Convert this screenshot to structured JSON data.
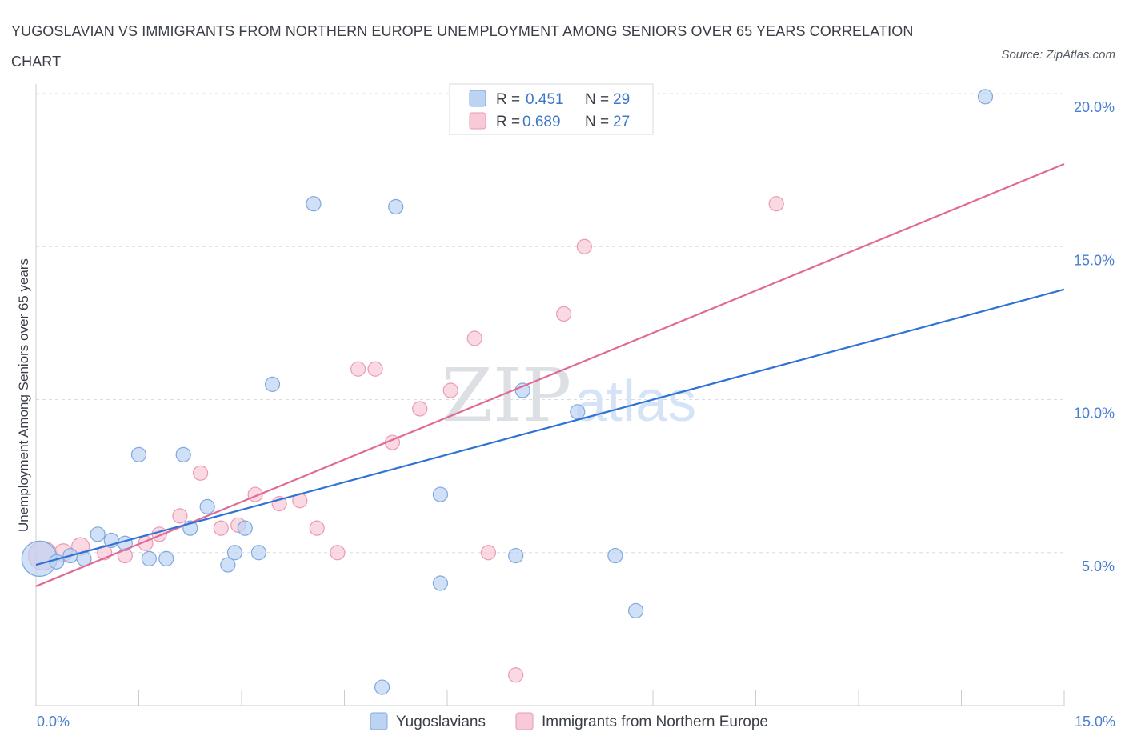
{
  "title": "YUGOSLAVIAN VS IMMIGRANTS FROM NORTHERN EUROPE UNEMPLOYMENT AMONG SENIORS OVER 65 YEARS CORRELATION CHART",
  "source": "Source: ZipAtlas.com",
  "watermark": {
    "zip": "ZIP",
    "atlas": "atlas"
  },
  "legend_stats": [
    {
      "r_label": "R =",
      "r_value": "0.451",
      "n_label": "N =",
      "n_value": "29"
    },
    {
      "r_label": "R =",
      "r_value": "0.689",
      "n_label": "N =",
      "n_value": "27"
    }
  ],
  "colors": {
    "blue_fill": "#bcd3f2",
    "blue_stroke": "#7fa8e0",
    "blue_line": "#2f72d6",
    "pink_fill": "#f8c9d7",
    "pink_stroke": "#ea9ab3",
    "pink_line": "#e06a94",
    "grid": "#d9dde2",
    "axis": "#c9cdd2"
  },
  "chart_data": {
    "type": "scatter",
    "title": "YUGOSLAVIAN VS IMMIGRANTS FROM NORTHERN EUROPE UNEMPLOYMENT AMONG SENIORS OVER 65 YEARS CORRELATION CHART",
    "xlabel": "",
    "ylabel": "Unemployment Among Seniors over 65 years",
    "xlim": [
      0,
      15
    ],
    "ylim": [
      0,
      20
    ],
    "x_tick_labels": [
      "0.0%",
      "15.0%"
    ],
    "y_ticks": [
      5,
      10,
      15,
      20
    ],
    "y_tick_labels": [
      "5.0%",
      "10.0%",
      "15.0%",
      "20.0%"
    ],
    "grid": true,
    "legend_position": "top-center",
    "series": [
      {
        "name": "Yugoslavians",
        "color": "#bcd3f2",
        "points": [
          {
            "x": 0.05,
            "y": 4.8,
            "r": 22
          },
          {
            "x": 0.3,
            "y": 4.7,
            "r": 9
          },
          {
            "x": 0.5,
            "y": 4.9,
            "r": 9
          },
          {
            "x": 0.7,
            "y": 4.8,
            "r": 9
          },
          {
            "x": 0.9,
            "y": 5.6,
            "r": 9
          },
          {
            "x": 1.1,
            "y": 5.4,
            "r": 9
          },
          {
            "x": 1.3,
            "y": 5.3,
            "r": 9
          },
          {
            "x": 1.5,
            "y": 8.2,
            "r": 9
          },
          {
            "x": 1.65,
            "y": 4.8,
            "r": 9
          },
          {
            "x": 1.9,
            "y": 4.8,
            "r": 9
          },
          {
            "x": 2.15,
            "y": 8.2,
            "r": 9
          },
          {
            "x": 2.25,
            "y": 5.8,
            "r": 9
          },
          {
            "x": 2.5,
            "y": 6.5,
            "r": 9
          },
          {
            "x": 2.8,
            "y": 4.6,
            "r": 9
          },
          {
            "x": 2.9,
            "y": 5.0,
            "r": 9
          },
          {
            "x": 3.05,
            "y": 5.8,
            "r": 9
          },
          {
            "x": 3.25,
            "y": 5.0,
            "r": 9
          },
          {
            "x": 3.45,
            "y": 10.5,
            "r": 9
          },
          {
            "x": 4.05,
            "y": 16.4,
            "r": 9
          },
          {
            "x": 5.05,
            "y": 0.6,
            "r": 9
          },
          {
            "x": 5.25,
            "y": 16.3,
            "r": 9
          },
          {
            "x": 5.9,
            "y": 4.0,
            "r": 9
          },
          {
            "x": 5.9,
            "y": 6.9,
            "r": 9
          },
          {
            "x": 7.0,
            "y": 4.9,
            "r": 9
          },
          {
            "x": 7.1,
            "y": 10.3,
            "r": 9
          },
          {
            "x": 7.9,
            "y": 9.6,
            "r": 9
          },
          {
            "x": 8.45,
            "y": 4.9,
            "r": 9
          },
          {
            "x": 8.75,
            "y": 3.1,
            "r": 9
          },
          {
            "x": 13.85,
            "y": 19.9,
            "r": 9
          }
        ],
        "trend": {
          "x1": 0.0,
          "y1": 4.6,
          "x2": 15.0,
          "y2": 13.6
        }
      },
      {
        "name": "Immigrants from Northern Europe",
        "color": "#f8c9d7",
        "points": [
          {
            "x": 0.1,
            "y": 4.9,
            "r": 18
          },
          {
            "x": 0.4,
            "y": 5.0,
            "r": 11
          },
          {
            "x": 0.65,
            "y": 5.2,
            "r": 11
          },
          {
            "x": 1.0,
            "y": 5.0,
            "r": 9
          },
          {
            "x": 1.3,
            "y": 4.9,
            "r": 9
          },
          {
            "x": 1.6,
            "y": 5.3,
            "r": 9
          },
          {
            "x": 1.8,
            "y": 5.6,
            "r": 9
          },
          {
            "x": 2.1,
            "y": 6.2,
            "r": 9
          },
          {
            "x": 2.4,
            "y": 7.6,
            "r": 9
          },
          {
            "x": 2.7,
            "y": 5.8,
            "r": 9
          },
          {
            "x": 2.95,
            "y": 5.9,
            "r": 9
          },
          {
            "x": 3.2,
            "y": 6.9,
            "r": 9
          },
          {
            "x": 3.55,
            "y": 6.6,
            "r": 9
          },
          {
            "x": 3.85,
            "y": 6.7,
            "r": 9
          },
          {
            "x": 4.1,
            "y": 5.8,
            "r": 9
          },
          {
            "x": 4.4,
            "y": 5.0,
            "r": 9
          },
          {
            "x": 4.7,
            "y": 11.0,
            "r": 9
          },
          {
            "x": 4.95,
            "y": 11.0,
            "r": 9
          },
          {
            "x": 5.2,
            "y": 8.6,
            "r": 9
          },
          {
            "x": 5.6,
            "y": 9.7,
            "r": 9
          },
          {
            "x": 6.05,
            "y": 10.3,
            "r": 9
          },
          {
            "x": 6.4,
            "y": 12.0,
            "r": 9
          },
          {
            "x": 6.6,
            "y": 5.0,
            "r": 9
          },
          {
            "x": 7.0,
            "y": 1.0,
            "r": 9
          },
          {
            "x": 7.7,
            "y": 12.8,
            "r": 9
          },
          {
            "x": 8.0,
            "y": 15.0,
            "r": 9
          },
          {
            "x": 10.8,
            "y": 16.4,
            "r": 9
          }
        ],
        "trend": {
          "x1": 0.0,
          "y1": 3.9,
          "x2": 15.0,
          "y2": 17.7
        }
      }
    ]
  }
}
